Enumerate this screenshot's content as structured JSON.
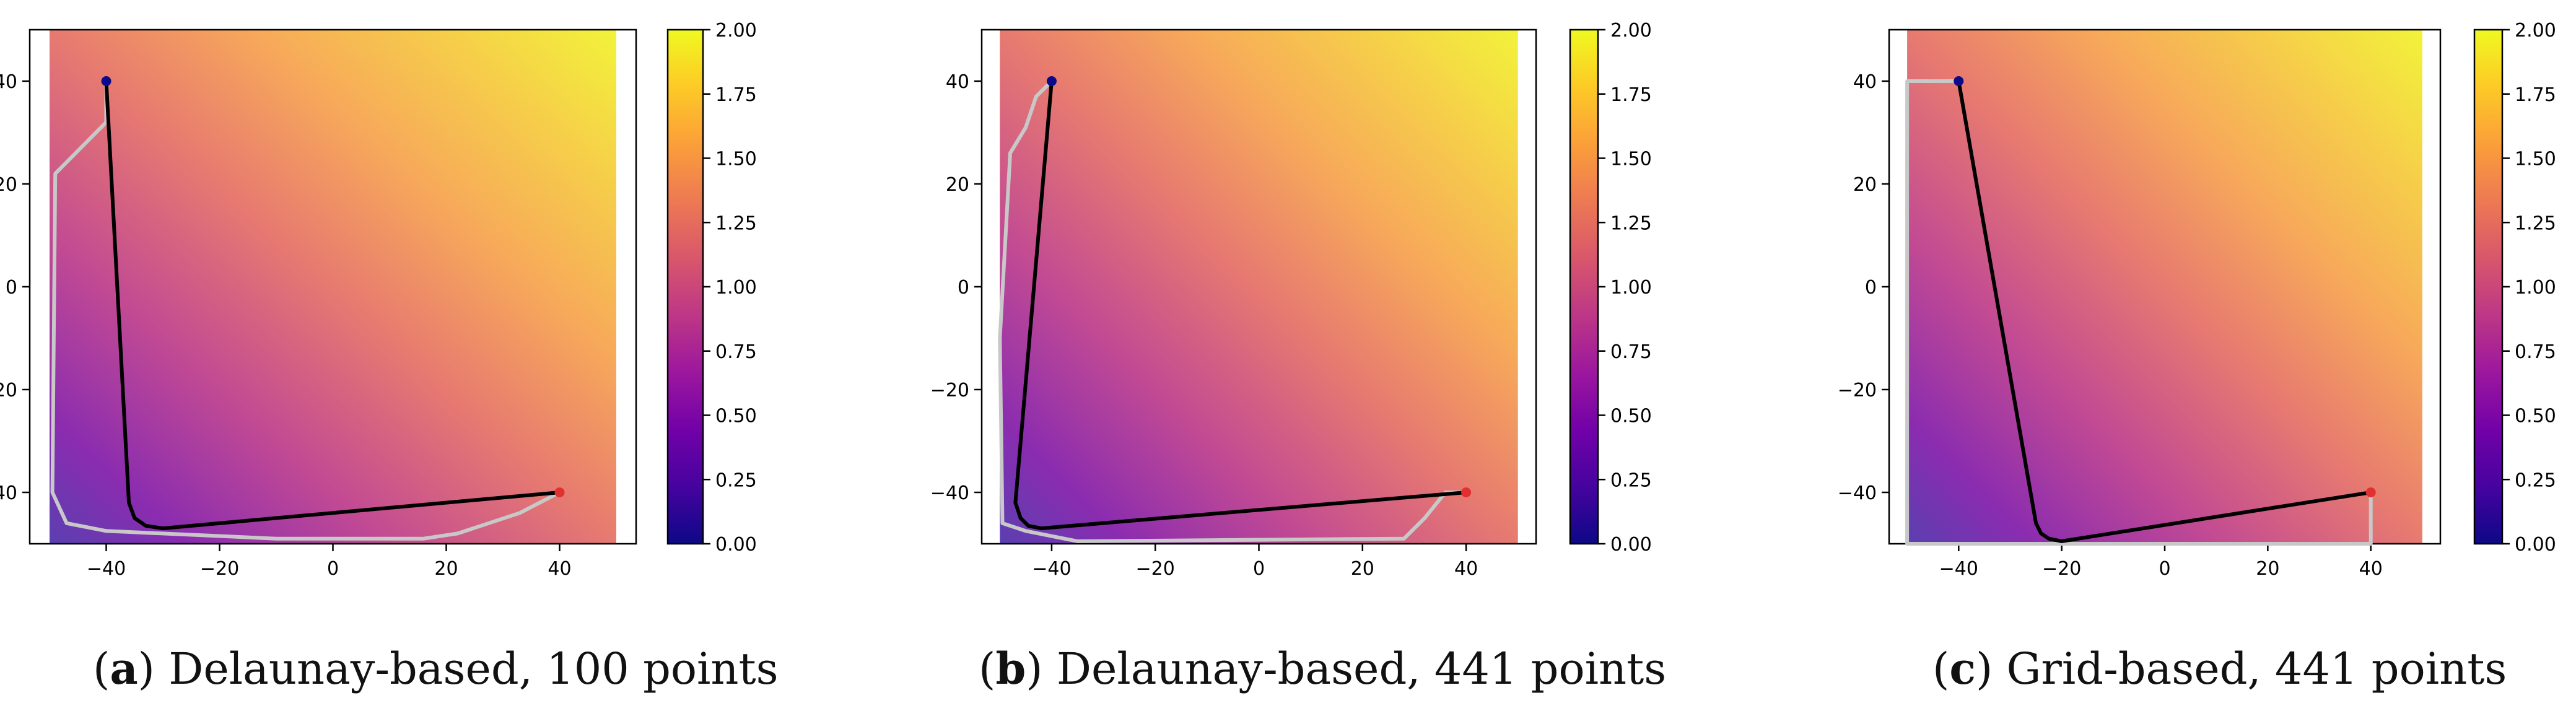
{
  "chart_data": [
    {
      "type": "heatmap",
      "caption_letter": "a",
      "caption_text": ") Delaunay-based, 100 points",
      "xlim": [
        -53.5,
        53.5
      ],
      "ylim": [
        -50,
        50
      ],
      "field_extent_x": [
        -50,
        50
      ],
      "xticks": [
        -40,
        -20,
        0,
        20,
        40
      ],
      "xtick_labels": [
        "−40",
        "−20",
        "0",
        "20",
        "40"
      ],
      "yticks": [
        -40,
        -20,
        0,
        20,
        40
      ],
      "ytick_labels": [
        "−40",
        "−20",
        "0",
        "20",
        "40"
      ],
      "colorbar": {
        "min": 0,
        "max": 2,
        "colormap": "plasma",
        "ticks": [
          "0.00",
          "0.25",
          "0.50",
          "0.75",
          "1.00",
          "1.25",
          "1.50",
          "1.75",
          "2.00"
        ]
      },
      "start_point": {
        "x": -40,
        "y": 40,
        "color": "#0a0a8a"
      },
      "end_point": {
        "x": 40,
        "y": -40,
        "color": "#e03030"
      },
      "optimal_path": [
        [
          -40,
          40
        ],
        [
          -36,
          -42
        ],
        [
          -35,
          -45
        ],
        [
          -33,
          -46.5
        ],
        [
          -30,
          -47
        ],
        [
          40,
          -40
        ]
      ],
      "graph_path": [
        [
          -40,
          40
        ],
        [
          -40,
          32
        ],
        [
          -49,
          22
        ],
        [
          -49.5,
          -40
        ],
        [
          -47,
          -46
        ],
        [
          -40,
          -47.5
        ],
        [
          -10,
          -49
        ],
        [
          16,
          -49
        ],
        [
          22,
          -48
        ],
        [
          33,
          -44
        ],
        [
          40,
          -40
        ]
      ]
    },
    {
      "type": "heatmap",
      "caption_letter": "b",
      "caption_text": ") Delaunay-based, 441 points",
      "xlim": [
        -53.5,
        53.5
      ],
      "ylim": [
        -50,
        50
      ],
      "field_extent_x": [
        -50,
        50
      ],
      "xticks": [
        -40,
        -20,
        0,
        20,
        40
      ],
      "xtick_labels": [
        "−40",
        "−20",
        "0",
        "20",
        "40"
      ],
      "yticks": [
        -40,
        -20,
        0,
        20,
        40
      ],
      "ytick_labels": [
        "−40",
        "−20",
        "0",
        "20",
        "40"
      ],
      "colorbar": {
        "min": 0,
        "max": 2,
        "colormap": "plasma",
        "ticks": [
          "0.00",
          "0.25",
          "0.50",
          "0.75",
          "1.00",
          "1.25",
          "1.50",
          "1.75",
          "2.00"
        ]
      },
      "start_point": {
        "x": -40,
        "y": 40,
        "color": "#0a0a8a"
      },
      "end_point": {
        "x": 40,
        "y": -40,
        "color": "#e03030"
      },
      "optimal_path": [
        [
          -40,
          40
        ],
        [
          -47,
          -42
        ],
        [
          -46,
          -45
        ],
        [
          -44.5,
          -46.5
        ],
        [
          -42,
          -47
        ],
        [
          40,
          -40
        ]
      ],
      "graph_path": [
        [
          -40,
          40
        ],
        [
          -43,
          37
        ],
        [
          -45,
          31
        ],
        [
          -48,
          26
        ],
        [
          -50,
          -10
        ],
        [
          -49.5,
          -46
        ],
        [
          -45,
          -47.5
        ],
        [
          -35,
          -49.5
        ],
        [
          28,
          -49
        ],
        [
          32,
          -45
        ],
        [
          36,
          -40
        ],
        [
          40,
          -40
        ]
      ]
    },
    {
      "type": "heatmap",
      "caption_letter": "c",
      "caption_text": ") Grid-based, 441 points",
      "xlim": [
        -53.5,
        53.5
      ],
      "ylim": [
        -50,
        50
      ],
      "field_extent_x": [
        -50,
        50
      ],
      "xticks": [
        -40,
        -20,
        0,
        20,
        40
      ],
      "xtick_labels": [
        "−40",
        "−20",
        "0",
        "20",
        "40"
      ],
      "yticks": [
        -40,
        -20,
        0,
        20,
        40
      ],
      "ytick_labels": [
        "−40",
        "−20",
        "0",
        "20",
        "40"
      ],
      "colorbar": {
        "min": 0,
        "max": 2,
        "colormap": "plasma",
        "ticks": [
          "0.00",
          "0.25",
          "0.50",
          "0.75",
          "1.00",
          "1.25",
          "1.50",
          "1.75",
          "2.00"
        ]
      },
      "start_point": {
        "x": -40,
        "y": 40,
        "color": "#0a0a8a"
      },
      "end_point": {
        "x": 40,
        "y": -40,
        "color": "#e03030"
      },
      "optimal_path": [
        [
          -40,
          40
        ],
        [
          -25,
          -46
        ],
        [
          -24,
          -48
        ],
        [
          -22.5,
          -49
        ],
        [
          -20,
          -49.5
        ],
        [
          40,
          -40
        ]
      ],
      "graph_path": [
        [
          -40,
          40
        ],
        [
          -50,
          40
        ],
        [
          -50,
          -50
        ],
        [
          40,
          -50
        ],
        [
          40,
          -40
        ]
      ]
    }
  ]
}
